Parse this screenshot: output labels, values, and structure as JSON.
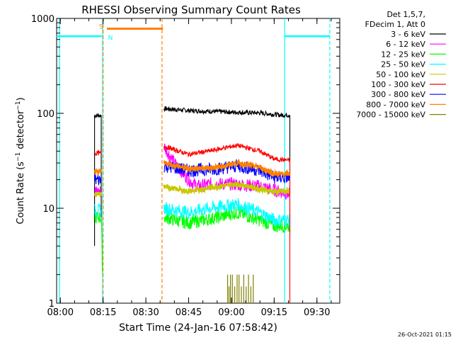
{
  "chart_data": {
    "type": "line",
    "title": "RHESSI Observing Summary Count Rates",
    "xlabel": "Start Time (24-Jan-16 07:58:42)",
    "ylabel": "Count Rate (s⁻¹ detector⁻¹)",
    "ylabel_parts": {
      "main": "Count Rate (s",
      "sup1": "−1",
      "mid": " detector",
      "sup2": "−1",
      "end": ")"
    },
    "ylog": true,
    "ylim": [
      1,
      1000
    ],
    "xlim": [
      "07:58:42",
      "09:38:00"
    ],
    "x_ticks": [
      "08:00",
      "08:15",
      "08:30",
      "08:45",
      "09:00",
      "09:15",
      "09:30"
    ],
    "y_ticks": [
      "1",
      "10",
      "100",
      "1000"
    ],
    "legend": {
      "position": "top-right",
      "header": [
        "Det 1,5,7,",
        "FDecim 1, Att 0"
      ]
    },
    "footer_date": "26-Oct-2021 01:15",
    "series": [
      {
        "name": "3 - 6 keV",
        "color": "#000000",
        "segments": [
          [
            [
              "08:12:00",
              4
            ],
            [
              "08:12:00",
              95
            ],
            [
              "08:14:20",
              95
            ],
            [
              "08:14:20",
              7
            ]
          ],
          [
            [
              "08:36:20",
              112
            ],
            [
              "08:45:00",
              107
            ],
            [
              "09:00:00",
              103
            ],
            [
              "09:10:00",
              101
            ],
            [
              "09:17:00",
              96
            ],
            [
              "09:20:30",
              96
            ],
            [
              "09:20:30",
              5
            ]
          ]
        ]
      },
      {
        "name": "6 - 12 keV",
        "color": "#ff00ff",
        "segments": [
          [
            [
              "08:12:00",
              15
            ],
            [
              "08:14:20",
              15
            ]
          ],
          [
            [
              "08:36:20",
              45
            ],
            [
              "08:40:00",
              30
            ],
            [
              "08:45:00",
              20
            ],
            [
              "08:48:00",
              17
            ],
            [
              "08:53:00",
              18
            ],
            [
              "09:00:00",
              18
            ],
            [
              "09:10:00",
              17
            ],
            [
              "09:17:00",
              15
            ],
            [
              "09:20:30",
              14
            ]
          ]
        ]
      },
      {
        "name": "12 - 25 keV",
        "color": "#00ff00",
        "segments": [
          [
            [
              "08:12:00",
              8
            ],
            [
              "08:14:20",
              8
            ],
            [
              "08:14:50",
              2
            ]
          ],
          [
            [
              "08:36:20",
              8
            ],
            [
              "08:45:00",
              7
            ],
            [
              "08:55:00",
              8
            ],
            [
              "09:02:00",
              9
            ],
            [
              "09:10:00",
              7.5
            ],
            [
              "09:15:00",
              6.5
            ],
            [
              "09:20:30",
              6.5
            ]
          ]
        ]
      },
      {
        "name": "25 - 50 keV",
        "color": "#00ffff",
        "segments": [
          [
            [
              "08:12:00",
              9.5
            ],
            [
              "08:14:20",
              9.5
            ]
          ],
          [
            [
              "08:36:20",
              10
            ],
            [
              "08:45:00",
              9
            ],
            [
              "08:52:00",
              10
            ],
            [
              "09:02:00",
              11
            ],
            [
              "09:10:00",
              9
            ],
            [
              "09:15:00",
              7.5
            ],
            [
              "09:20:30",
              7.5
            ]
          ]
        ]
      },
      {
        "name": "50 - 100 keV",
        "color": "#c8c800",
        "segments": [
          [
            [
              "08:12:00",
              14
            ],
            [
              "08:14:20",
              14
            ]
          ],
          [
            [
              "08:36:20",
              17
            ],
            [
              "08:45:00",
              15
            ],
            [
              "08:55:00",
              17
            ],
            [
              "09:02:00",
              18
            ],
            [
              "09:10:00",
              16
            ],
            [
              "09:15:00",
              15
            ],
            [
              "09:20:30",
              15
            ]
          ]
        ]
      },
      {
        "name": "100 - 300 keV",
        "color": "#ff0000",
        "segments": [
          [
            [
              "08:12:00",
              38
            ],
            [
              "08:14:20",
              38
            ]
          ],
          [
            [
              "08:36:20",
              45
            ],
            [
              "08:45:00",
              37
            ],
            [
              "08:52:00",
              40
            ],
            [
              "09:02:00",
              46
            ],
            [
              "09:10:00",
              40
            ],
            [
              "09:15:00",
              33
            ],
            [
              "09:20:30",
              32
            ],
            [
              "09:20:30",
              1
            ]
          ]
        ]
      },
      {
        "name": "300 - 800 keV",
        "color": "#0000ff",
        "segments": [
          [
            [
              "08:12:00",
              20
            ],
            [
              "08:14:20",
              20
            ]
          ],
          [
            [
              "08:36:20",
              28
            ],
            [
              "08:45:00",
              25
            ],
            [
              "08:55:00",
              26
            ],
            [
              "09:02:00",
              28
            ],
            [
              "09:10:00",
              25
            ],
            [
              "09:15:00",
              21
            ],
            [
              "09:20:30",
              21
            ]
          ]
        ]
      },
      {
        "name": "800 - 7000 keV",
        "color": "#ff8000",
        "segments": [
          [
            [
              "08:12:00",
              24
            ],
            [
              "08:14:20",
              24
            ]
          ],
          [
            [
              "08:36:20",
              30
            ],
            [
              "08:45:00",
              26
            ],
            [
              "08:55:00",
              27
            ],
            [
              "09:02:00",
              30
            ],
            [
              "09:10:00",
              27
            ],
            [
              "09:15:00",
              23
            ],
            [
              "09:20:30",
              23
            ]
          ]
        ]
      },
      {
        "name": "7000 - 15000 keV",
        "color": "#808000",
        "segments": []
      }
    ],
    "spikes_7000": {
      "color": "#808000",
      "times": [
        "08:58:40",
        "08:59:10",
        "08:59:40",
        "09:00:20",
        "09:01:10",
        "09:02:00",
        "09:02:40",
        "09:03:30",
        "09:04:20",
        "09:05:10",
        "09:06:00",
        "09:06:50",
        "09:07:40"
      ],
      "heights": [
        2,
        1.5,
        2,
        2,
        1.5,
        2,
        2,
        1.5,
        2,
        1.5,
        2,
        1.5,
        2
      ]
    },
    "flags": [
      {
        "label": "S",
        "color": "#ff8000",
        "from": "08:16:20",
        "to": "08:36:00",
        "level": 780
      },
      {
        "label": "N",
        "color": "#00ffff",
        "from": "08:15:30",
        "to": "08:15:30",
        "level": 650
      }
    ],
    "saa_bars": [
      {
        "color": "#00ffff",
        "from": "07:58:42",
        "to": "08:14:30",
        "level": 650
      },
      {
        "color": "#00ffff",
        "from": "09:18:40",
        "to": "09:34:30",
        "level": 650
      }
    ],
    "vlines": [
      {
        "time": "07:59:45",
        "color": "#00ffff",
        "style": "solid"
      },
      {
        "time": "08:14:50",
        "color": "#00ffff",
        "style": "solid"
      },
      {
        "time": "08:15:00",
        "color": "#ff8000",
        "style": "dashed"
      },
      {
        "time": "08:35:40",
        "color": "#ff8000",
        "style": "dashed"
      },
      {
        "time": "09:18:40",
        "color": "#00ffff",
        "style": "solid"
      },
      {
        "time": "09:34:30",
        "color": "#00ffff",
        "style": "dashed"
      }
    ]
  }
}
